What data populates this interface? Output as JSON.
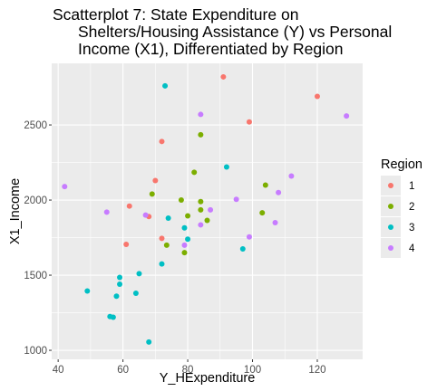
{
  "chart_data": {
    "type": "scatter",
    "title_lines": [
      "Scatterplot 7: State Expenditure on",
      "Shelters/Housing Assistance (Y) vs Personal",
      "Income (X1), Differentiated by Region"
    ],
    "xlabel": "Y_HExpenditure",
    "ylabel": "X1_Income",
    "xlim": [
      38,
      134
    ],
    "ylim": [
      940,
      2910
    ],
    "x_ticks": [
      40,
      60,
      80,
      100,
      120
    ],
    "y_ticks": [
      1000,
      1500,
      2000,
      2500
    ],
    "grid": true,
    "legend": {
      "title": "Region",
      "placement": "right"
    },
    "series": [
      {
        "name": "1",
        "color": "#F8766D",
        "points": [
          [
            91,
            2820
          ],
          [
            120,
            2690
          ],
          [
            99,
            2520
          ],
          [
            72,
            2390
          ],
          [
            70,
            2130
          ],
          [
            62,
            1960
          ],
          [
            68,
            1890
          ],
          [
            61,
            1705
          ],
          [
            72,
            1745
          ]
        ]
      },
      {
        "name": "2",
        "color": "#7CAE00",
        "points": [
          [
            84,
            2435
          ],
          [
            82,
            2185
          ],
          [
            104,
            2100
          ],
          [
            69,
            2040
          ],
          [
            78,
            2000
          ],
          [
            84,
            1990
          ],
          [
            80,
            1895
          ],
          [
            84,
            1935
          ],
          [
            86,
            1865
          ],
          [
            103,
            1915
          ],
          [
            73.5,
            1700
          ],
          [
            79,
            1650
          ]
        ]
      },
      {
        "name": "3",
        "color": "#00BFC4",
        "points": [
          [
            73,
            2760
          ],
          [
            92,
            2220
          ],
          [
            74,
            1880
          ],
          [
            79,
            1815
          ],
          [
            80,
            1740
          ],
          [
            97,
            1675
          ],
          [
            72,
            1575
          ],
          [
            65,
            1510
          ],
          [
            59,
            1485
          ],
          [
            59,
            1440
          ],
          [
            49,
            1395
          ],
          [
            64,
            1380
          ],
          [
            58,
            1360
          ],
          [
            56,
            1225
          ],
          [
            57,
            1220
          ],
          [
            68,
            1055
          ]
        ]
      },
      {
        "name": "4",
        "color": "#C77CFF",
        "points": [
          [
            84,
            2570
          ],
          [
            129,
            2560
          ],
          [
            112,
            2160
          ],
          [
            42,
            2090
          ],
          [
            108,
            2050
          ],
          [
            95,
            2005
          ],
          [
            55,
            1920
          ],
          [
            67,
            1900
          ],
          [
            87,
            1935
          ],
          [
            84,
            1835
          ],
          [
            107,
            1850
          ],
          [
            99,
            1755
          ],
          [
            79,
            1700
          ]
        ]
      }
    ]
  }
}
